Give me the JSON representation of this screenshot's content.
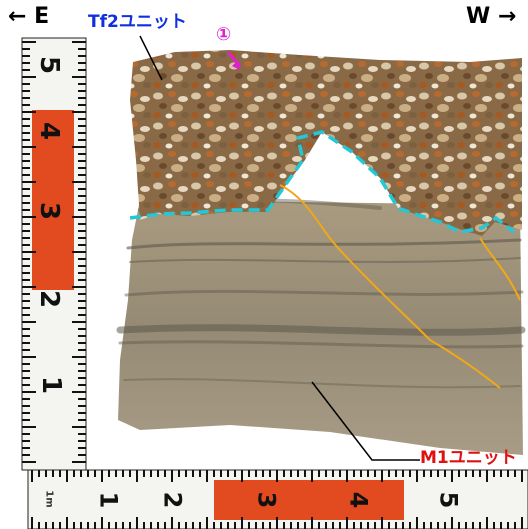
{
  "direction": {
    "left": "← E",
    "right": "W →"
  },
  "labels": {
    "upper_unit": "Tf2ユニット",
    "lower_unit": "M1ユニット",
    "marker": "①"
  },
  "ruler": {
    "vertical_numbers": [
      "5",
      "4",
      "3",
      "2",
      "1"
    ],
    "horizontal_numbers": [
      "1",
      "2",
      "3",
      "4",
      "5"
    ],
    "horizontal_unit": "1m"
  },
  "colors": {
    "upper_label": "#1030e0",
    "lower_label": "#e01010",
    "marker": "#e020d0",
    "boundary_line": "#22c8d8",
    "trace_line": "#f0a818"
  }
}
